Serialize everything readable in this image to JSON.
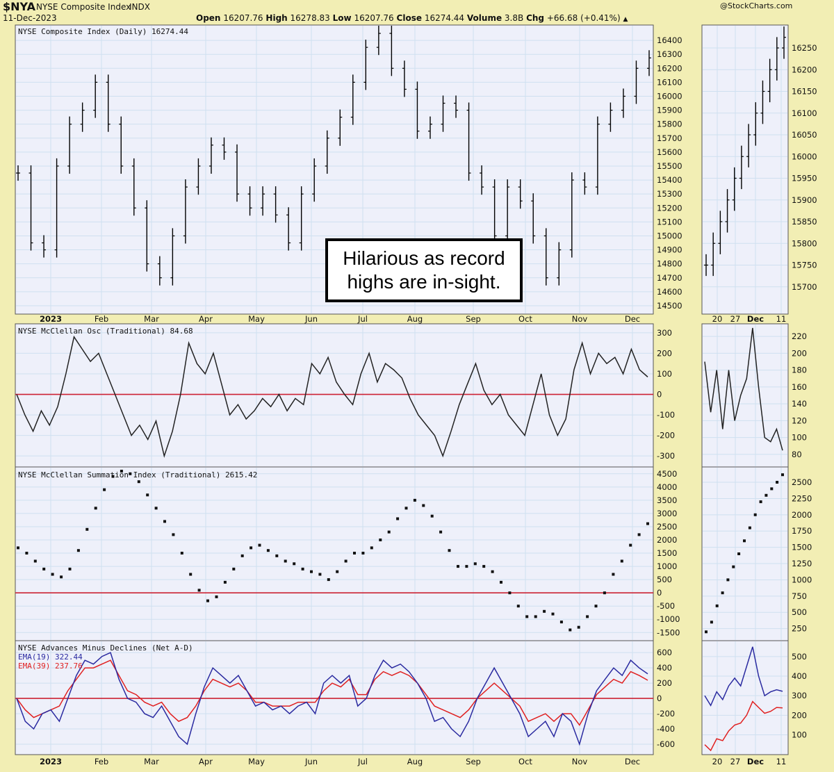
{
  "header": {
    "symbol": "$NYA",
    "name": "NYSE Composite Index",
    "exchange": "INDX",
    "date": "11-Dec-2023",
    "watermark": "@StockCharts.com",
    "open_label": "Open",
    "open": "16207.76",
    "high_label": "High",
    "high": "16278.83",
    "low_label": "Low",
    "low": "16207.76",
    "close_label": "Close",
    "close": "16274.44",
    "volume_label": "Volume",
    "volume": "3.8B",
    "chg_label": "Chg",
    "chg": "+66.68 (+0.41%)"
  },
  "annotation": "Hilarious as record highs are in-sight.",
  "colors": {
    "background": "#f2eeb4",
    "panel": "#eef0fa",
    "grid": "#cfe0f0",
    "price": "#000000",
    "zero_line": "#cc2233",
    "ema19": "#2a2aa0",
    "ema39": "#e02020"
  },
  "chart_data": [
    {
      "type": "ohlc",
      "panel": "price",
      "title": "NYSE Composite Index (Daily) 16274.44",
      "y_ticks": [
        14500,
        14600,
        14700,
        14800,
        14900,
        15000,
        15100,
        15200,
        15300,
        15400,
        15500,
        15600,
        15700,
        15800,
        15900,
        16000,
        16100,
        16200,
        16300,
        16400
      ],
      "ylim": [
        14450,
        16500
      ],
      "x_labels": [
        "2023",
        "Feb",
        "Mar",
        "Apr",
        "May",
        "Jun",
        "Jul",
        "Aug",
        "Sep",
        "Oct",
        "Nov",
        "Dec"
      ],
      "closes_approx": [
        15450,
        14950,
        14900,
        15500,
        15800,
        15900,
        16100,
        15800,
        15500,
        15200,
        14800,
        14700,
        15000,
        15350,
        15500,
        15650,
        15600,
        15300,
        15200,
        15300,
        15150,
        14950,
        15300,
        15500,
        15700,
        15850,
        16100,
        16350,
        16450,
        16200,
        16050,
        15750,
        15800,
        15950,
        15900,
        15450,
        15350,
        15000,
        15350,
        15250,
        15000,
        14700,
        14900,
        15400,
        15350,
        15800,
        15900,
        16000,
        16200,
        16274.44
      ]
    },
    {
      "type": "ohlc",
      "panel": "price-zoom",
      "y_ticks": [
        15700,
        15750,
        15800,
        15850,
        15900,
        15950,
        16000,
        16050,
        16100,
        16150,
        16200,
        16250
      ],
      "x_labels": [
        "20",
        "27",
        "Dec",
        "11"
      ],
      "closes_approx": [
        15750,
        15800,
        15850,
        15900,
        15950,
        16000,
        16050,
        16100,
        16150,
        16200,
        16250,
        16274.44
      ]
    },
    {
      "type": "line",
      "panel": "oscillator",
      "title": "NYSE McClellan Osc (Traditional) 84.68",
      "y_ticks": [
        -300,
        -200,
        -100,
        0,
        100,
        200,
        300
      ],
      "ylim": [
        -340,
        330
      ],
      "zero_line": 0,
      "values": [
        0,
        -100,
        -180,
        -80,
        -150,
        -60,
        100,
        280,
        220,
        160,
        200,
        100,
        0,
        -100,
        -200,
        -150,
        -220,
        -130,
        -300,
        -180,
        0,
        250,
        150,
        100,
        200,
        50,
        -100,
        -50,
        -120,
        -80,
        -20,
        -60,
        0,
        -80,
        -20,
        -50,
        150,
        100,
        180,
        60,
        0,
        -50,
        100,
        200,
        60,
        150,
        120,
        80,
        -20,
        -100,
        -150,
        -200,
        -300,
        -180,
        -50,
        50,
        150,
        20,
        -50,
        0,
        -100,
        -150,
        -200,
        -50,
        100,
        -100,
        -200,
        -120,
        120,
        250,
        100,
        200,
        150,
        180,
        100,
        220,
        120,
        84.68
      ]
    },
    {
      "type": "line",
      "panel": "oscillator-zoom",
      "y_ticks": [
        80,
        100,
        120,
        140,
        160,
        180,
        200,
        220
      ],
      "values": [
        190,
        130,
        180,
        110,
        180,
        120,
        150,
        170,
        230,
        160,
        100,
        95,
        110,
        84.68
      ]
    },
    {
      "type": "scatter",
      "panel": "summation",
      "title": "NYSE McClellan Summation Index (Traditional) 2615.42",
      "y_ticks": [
        -1500,
        -1000,
        -500,
        0,
        500,
        1000,
        1500,
        2000,
        2500,
        3000,
        3500,
        4000,
        4500
      ],
      "ylim": [
        -1650,
        4600
      ],
      "zero_line": 0,
      "values": [
        1700,
        1500,
        1200,
        900,
        700,
        600,
        900,
        1600,
        2400,
        3200,
        3900,
        4400,
        4600,
        4500,
        4200,
        3700,
        3200,
        2700,
        2200,
        1500,
        700,
        100,
        -300,
        -150,
        400,
        900,
        1400,
        1700,
        1800,
        1600,
        1400,
        1200,
        1100,
        900,
        800,
        700,
        500,
        800,
        1200,
        1500,
        1500,
        1700,
        2000,
        2300,
        2800,
        3200,
        3500,
        3300,
        2900,
        2300,
        1600,
        1000,
        1000,
        1100,
        1000,
        800,
        400,
        0,
        -500,
        -900,
        -900,
        -700,
        -800,
        -1100,
        -1400,
        -1300,
        -900,
        -500,
        0,
        700,
        1200,
        1800,
        2200,
        2615.42
      ]
    },
    {
      "type": "scatter",
      "panel": "summation-zoom",
      "y_ticks": [
        250,
        500,
        750,
        1000,
        1250,
        1500,
        1750,
        2000,
        2250,
        2500
      ],
      "values": [
        200,
        350,
        600,
        800,
        1000,
        1200,
        1400,
        1600,
        1800,
        2000,
        2200,
        2300,
        2400,
        2500,
        2615.42
      ]
    },
    {
      "type": "line",
      "panel": "breadth",
      "title": "NYSE Advances Minus Declines (Net A-D)",
      "series": [
        {
          "name": "EMA(19) 322.44",
          "values": [
            0,
            -300,
            -400,
            -200,
            -150,
            -300,
            0,
            300,
            500,
            450,
            550,
            600,
            250,
            0,
            -50,
            -200,
            -250,
            -100,
            -300,
            -500,
            -600,
            -200,
            150,
            400,
            300,
            200,
            300,
            100,
            -100,
            -50,
            -150,
            -100,
            -200,
            -100,
            -50,
            -200,
            200,
            300,
            200,
            300,
            -100,
            0,
            300,
            500,
            400,
            450,
            350,
            200,
            0,
            -300,
            -250,
            -400,
            -500,
            -300,
            0,
            200,
            400,
            200,
            0,
            -200,
            -500,
            -400,
            -300,
            -500,
            -200,
            -300,
            -600,
            -200,
            100,
            250,
            400,
            300,
            500,
            400,
            322.44
          ]
        },
        {
          "name": "EMA(39) 237.76",
          "values": [
            0,
            -150,
            -250,
            -200,
            -150,
            -100,
            100,
            250,
            400,
            400,
            450,
            500,
            300,
            100,
            50,
            -50,
            -100,
            -50,
            -200,
            -300,
            -250,
            -100,
            100,
            250,
            200,
            150,
            200,
            100,
            -50,
            -50,
            -100,
            -100,
            -100,
            -50,
            -50,
            -50,
            100,
            200,
            150,
            250,
            50,
            50,
            250,
            350,
            300,
            350,
            300,
            200,
            50,
            -100,
            -150,
            -200,
            -250,
            -150,
            0,
            100,
            200,
            100,
            0,
            -100,
            -300,
            -250,
            -200,
            -300,
            -200,
            -200,
            -350,
            -150,
            50,
            150,
            250,
            200,
            350,
            300,
            237.76
          ]
        }
      ],
      "y_ticks": [
        -600,
        -400,
        -200,
        0,
        200,
        400,
        600
      ],
      "ylim": [
        -700,
        720
      ],
      "zero_line": 0,
      "x_labels": [
        "2023",
        "Feb",
        "Mar",
        "Apr",
        "May",
        "Jun",
        "Jul",
        "Aug",
        "Sep",
        "Oct",
        "Nov",
        "Dec"
      ]
    },
    {
      "type": "line",
      "panel": "breadth-zoom",
      "y_ticks": [
        100,
        200,
        300,
        400,
        500
      ],
      "x_labels": [
        "20",
        "27",
        "Dec",
        "11"
      ],
      "series": [
        {
          "name": "EMA(19)",
          "values": [
            300,
            250,
            320,
            280,
            350,
            390,
            350,
            450,
            550,
            400,
            300,
            320,
            330,
            322.44
          ]
        },
        {
          "name": "EMA(39)",
          "values": [
            50,
            20,
            80,
            70,
            120,
            150,
            160,
            200,
            270,
            240,
            210,
            220,
            240,
            237.76
          ]
        }
      ]
    }
  ]
}
